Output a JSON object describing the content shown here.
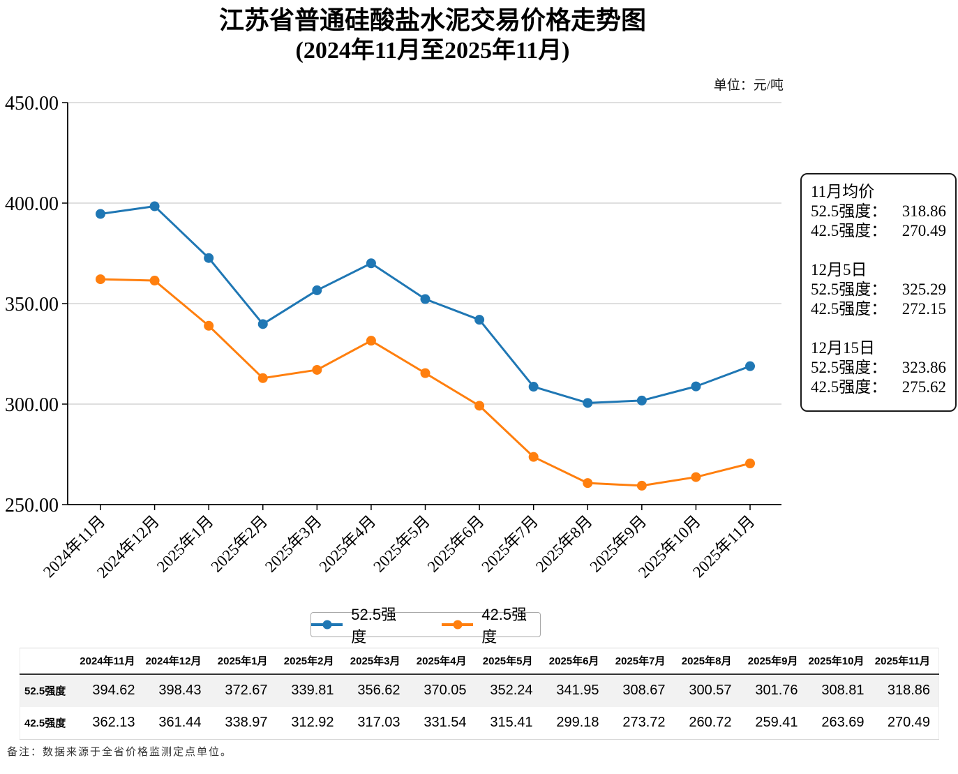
{
  "title": {
    "line1": "江苏省普通硅酸盐水泥交易价格走势图",
    "line2": "(2024年11月至2025年11月)"
  },
  "unit_label": "单位：元/吨",
  "chart_data": {
    "type": "line",
    "categories": [
      "2024年11月",
      "2024年12月",
      "2025年1月",
      "2025年2月",
      "2025年3月",
      "2025年4月",
      "2025年5月",
      "2025年6月",
      "2025年7月",
      "2025年8月",
      "2025年9月",
      "2025年10月",
      "2025年11月"
    ],
    "series": [
      {
        "name": "52.5强度",
        "color": "#1f77b4",
        "values": [
          394.62,
          398.43,
          372.67,
          339.81,
          356.62,
          370.05,
          352.24,
          341.95,
          308.67,
          300.57,
          301.76,
          308.81,
          318.86
        ]
      },
      {
        "name": "42.5强度",
        "color": "#ff7f0e",
        "values": [
          362.13,
          361.44,
          338.97,
          312.92,
          317.03,
          331.54,
          315.41,
          299.18,
          273.72,
          260.72,
          259.41,
          263.69,
          270.49
        ]
      }
    ],
    "title": "江苏省普通硅酸盐水泥交易价格走势图(2024年11月至2025年11月)",
    "xlabel": "",
    "ylabel": "",
    "ylim": [
      250,
      450
    ],
    "yticks": [
      450,
      400,
      350,
      300,
      250
    ],
    "grid": true,
    "legend_position": "bottom"
  },
  "annotation_box": {
    "groups": [
      {
        "heading": "11月均价",
        "lines": [
          {
            "label": "52.5强度：",
            "value": "318.86"
          },
          {
            "label": "42.5强度：",
            "value": "270.49"
          }
        ]
      },
      {
        "heading": "12月5日",
        "lines": [
          {
            "label": "52.5强度：",
            "value": "325.29"
          },
          {
            "label": "42.5强度：",
            "value": "272.15"
          }
        ]
      },
      {
        "heading": "12月15日",
        "lines": [
          {
            "label": "52.5强度：",
            "value": "323.86"
          },
          {
            "label": "42.5强度：",
            "value": "275.62"
          }
        ]
      }
    ]
  },
  "legend": {
    "items": [
      {
        "label": "52.5强度",
        "color": "#1f77b4"
      },
      {
        "label": "42.5强度",
        "color": "#ff7f0e"
      }
    ]
  },
  "table": {
    "columns": [
      "2024年11月",
      "2024年12月",
      "2025年1月",
      "2025年2月",
      "2025年3月",
      "2025年4月",
      "2025年5月",
      "2025年6月",
      "2025年7月",
      "2025年8月",
      "2025年9月",
      "2025年10月",
      "2025年11月"
    ],
    "rows": [
      {
        "label": "52.5强度",
        "values": [
          "394.62",
          "398.43",
          "372.67",
          "339.81",
          "356.62",
          "370.05",
          "352.24",
          "341.95",
          "308.67",
          "300.57",
          "301.76",
          "308.81",
          "318.86"
        ]
      },
      {
        "label": "42.5强度",
        "values": [
          "362.13",
          "361.44",
          "338.97",
          "312.92",
          "317.03",
          "331.54",
          "315.41",
          "299.18",
          "273.72",
          "260.72",
          "259.41",
          "263.69",
          "270.49"
        ]
      }
    ]
  },
  "footer_note": "备注：数据来源于全省价格监测定点单位。"
}
